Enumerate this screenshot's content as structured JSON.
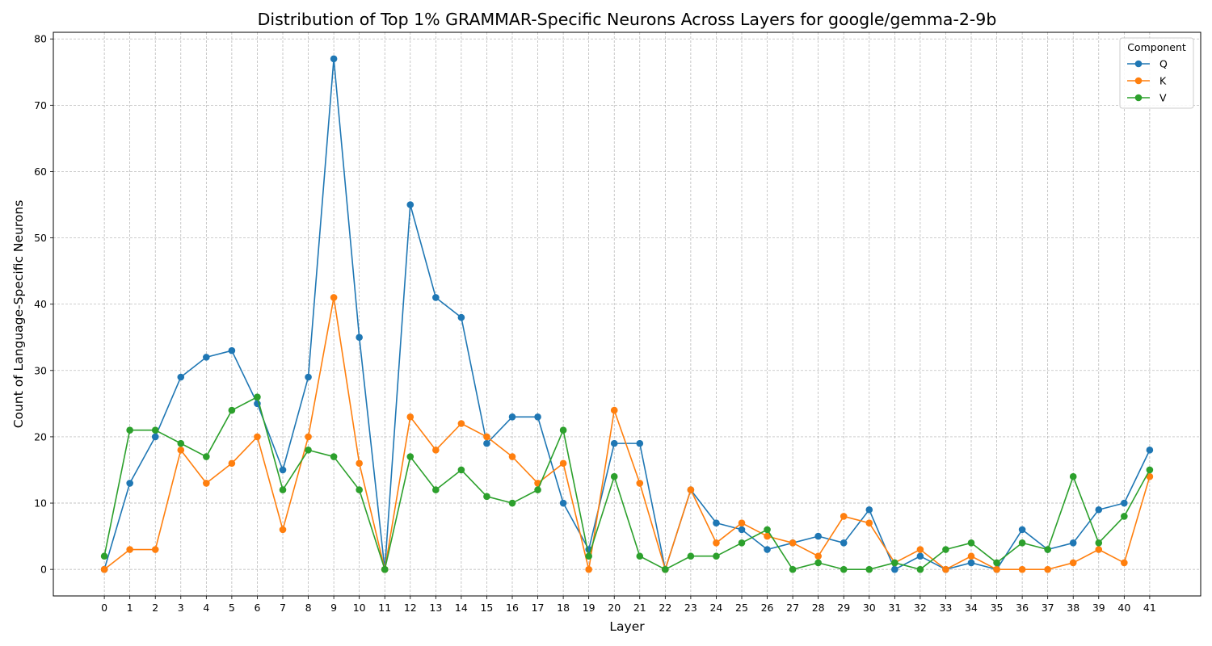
{
  "chart_data": {
    "type": "line",
    "title": "Distribution of Top 1% GRAMMAR-Specific Neurons Across Layers for google/gemma-2-9b",
    "xlabel": "Layer",
    "ylabel": "Count of Language-Specific Neurons",
    "x": [
      0,
      1,
      2,
      3,
      4,
      5,
      6,
      7,
      8,
      9,
      10,
      11,
      12,
      13,
      14,
      15,
      16,
      17,
      18,
      19,
      20,
      21,
      22,
      23,
      24,
      25,
      26,
      27,
      28,
      29,
      30,
      31,
      32,
      33,
      34,
      35,
      36,
      37,
      38,
      39,
      40,
      41
    ],
    "x_tick_labels": [
      "0",
      "1",
      "2",
      "3",
      "4",
      "5",
      "6",
      "7",
      "8",
      "9",
      "10",
      "11",
      "12",
      "13",
      "14",
      "15",
      "16",
      "17",
      "18",
      "19",
      "20",
      "21",
      "22",
      "23",
      "24",
      "25",
      "26",
      "27",
      "28",
      "29",
      "30",
      "31",
      "32",
      "33",
      "34",
      "35",
      "36",
      "37",
      "38",
      "39",
      "40",
      "41"
    ],
    "ylim": [
      -4,
      81
    ],
    "y_ticks": [
      0,
      10,
      20,
      30,
      40,
      50,
      60,
      70,
      80
    ],
    "grid": true,
    "legend": {
      "title": "Component",
      "placement": "top-right"
    },
    "series": [
      {
        "name": "Q",
        "color": "#1f77b4",
        "values": [
          0,
          13,
          20,
          29,
          32,
          33,
          25,
          15,
          29,
          77,
          35,
          0,
          55,
          41,
          38,
          19,
          23,
          23,
          10,
          3,
          19,
          19,
          0,
          12,
          7,
          6,
          3,
          4,
          5,
          4,
          9,
          0,
          2,
          0,
          1,
          0,
          6,
          3,
          4,
          9,
          10,
          18
        ]
      },
      {
        "name": "K",
        "color": "#ff7f0e",
        "values": [
          0,
          3,
          3,
          18,
          13,
          16,
          20,
          6,
          20,
          41,
          16,
          0,
          23,
          18,
          22,
          20,
          17,
          13,
          16,
          0,
          24,
          13,
          0,
          12,
          4,
          7,
          5,
          4,
          2,
          8,
          7,
          1,
          3,
          0,
          2,
          0,
          0,
          0,
          1,
          3,
          1,
          14
        ]
      },
      {
        "name": "V",
        "color": "#2ca02c",
        "values": [
          2,
          21,
          21,
          19,
          17,
          24,
          26,
          12,
          18,
          17,
          12,
          0,
          17,
          12,
          15,
          11,
          10,
          12,
          21,
          2,
          14,
          2,
          0,
          2,
          2,
          4,
          6,
          0,
          1,
          0,
          0,
          1,
          0,
          3,
          4,
          1,
          4,
          3,
          14,
          4,
          8,
          15
        ]
      }
    ]
  }
}
